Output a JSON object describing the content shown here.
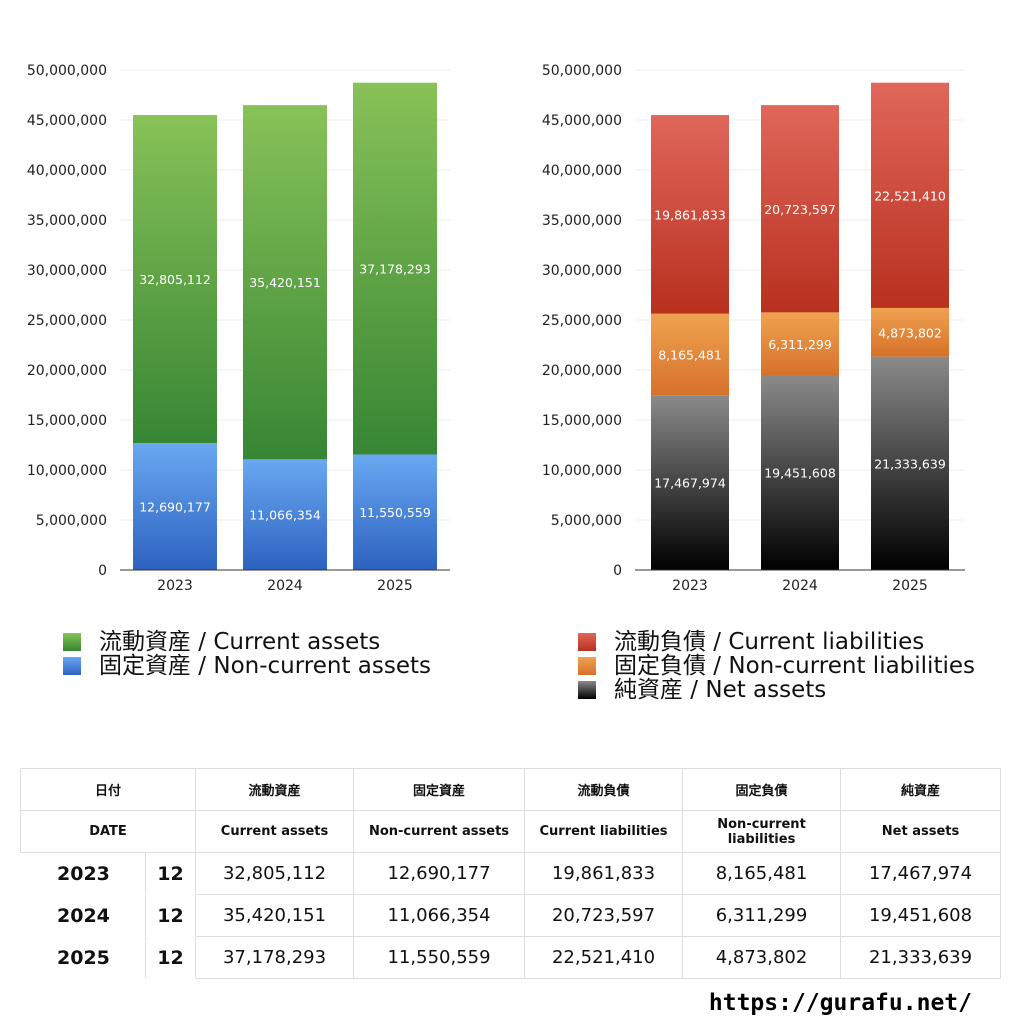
{
  "chart_data": [
    {
      "type": "bar",
      "stacked": true,
      "categories": [
        "2023",
        "2024",
        "2025"
      ],
      "ylim": [
        0,
        50000000
      ],
      "yticks": [
        "0",
        "5,000,000",
        "10,000,000",
        "15,000,000",
        "20,000,000",
        "25,000,000",
        "30,000,000",
        "35,000,000",
        "40,000,000",
        "45,000,000",
        "50,000,000"
      ],
      "series": [
        {
          "name": "固定資産 / Non-current assets",
          "values": [
            12690177,
            11066354,
            11550559
          ],
          "labels": [
            "12,690,177",
            "11,066,354",
            "11,550,559"
          ],
          "colors": [
            "#6aa8f2",
            "#2c62c0"
          ]
        },
        {
          "name": "流動資産 / Current assets",
          "values": [
            32805112,
            35420151,
            37178293
          ],
          "labels": [
            "32,805,112",
            "35,420,151",
            "37,178,293"
          ],
          "colors": [
            "#88c258",
            "#378634"
          ]
        }
      ],
      "legend": "bottom"
    },
    {
      "type": "bar",
      "stacked": true,
      "categories": [
        "2023",
        "2024",
        "2025"
      ],
      "ylim": [
        0,
        50000000
      ],
      "yticks": [
        "0",
        "5,000,000",
        "10,000,000",
        "15,000,000",
        "20,000,000",
        "25,000,000",
        "30,000,000",
        "35,000,000",
        "40,000,000",
        "45,000,000",
        "50,000,000"
      ],
      "series": [
        {
          "name": "純資産 / Net assets",
          "values": [
            17467974,
            19451608,
            21333639
          ],
          "labels": [
            "17,467,974",
            "19,451,608",
            "21,333,639"
          ],
          "colors": [
            "#8a8a8a",
            "#000000"
          ]
        },
        {
          "name": "固定負債 / Non-current liabilities",
          "values": [
            8165481,
            6311299,
            4873802
          ],
          "labels": [
            "8,165,481",
            "6,311,299",
            "4,873,802"
          ],
          "colors": [
            "#f0a250",
            "#d6712a"
          ]
        },
        {
          "name": "流動負債 / Current liabilities",
          "values": [
            19861833,
            20723597,
            22521410
          ],
          "labels": [
            "19,861,833",
            "20,723,597",
            "22,521,410"
          ],
          "colors": [
            "#e0675b",
            "#b8301e"
          ]
        }
      ],
      "legend": "bottom"
    }
  ],
  "legend_left": [
    "流動資産 / Current assets",
    "固定資産 / Non-current assets"
  ],
  "legend_right": [
    "流動負債 / Current liabilities",
    "固定負債 / Non-current liabilities",
    "純資産 / Net assets"
  ],
  "table": {
    "header_jp": [
      "日付",
      "流動資産",
      "固定資産",
      "流動負債",
      "固定負債",
      "純資産"
    ],
    "header_en": [
      "DATE",
      "Current assets",
      "Non-current assets",
      "Current liabilities",
      "Non-current liabilities",
      "Net assets"
    ],
    "rows": [
      [
        "2023",
        "12",
        "32,805,112",
        "12,690,177",
        "19,861,833",
        "8,165,481",
        "17,467,974"
      ],
      [
        "2024",
        "12",
        "35,420,151",
        "11,066,354",
        "20,723,597",
        "6,311,299",
        "19,451,608"
      ],
      [
        "2025",
        "12",
        "37,178,293",
        "11,550,559",
        "22,521,410",
        "4,873,802",
        "21,333,639"
      ]
    ]
  },
  "footer": "https://gurafu.net/"
}
